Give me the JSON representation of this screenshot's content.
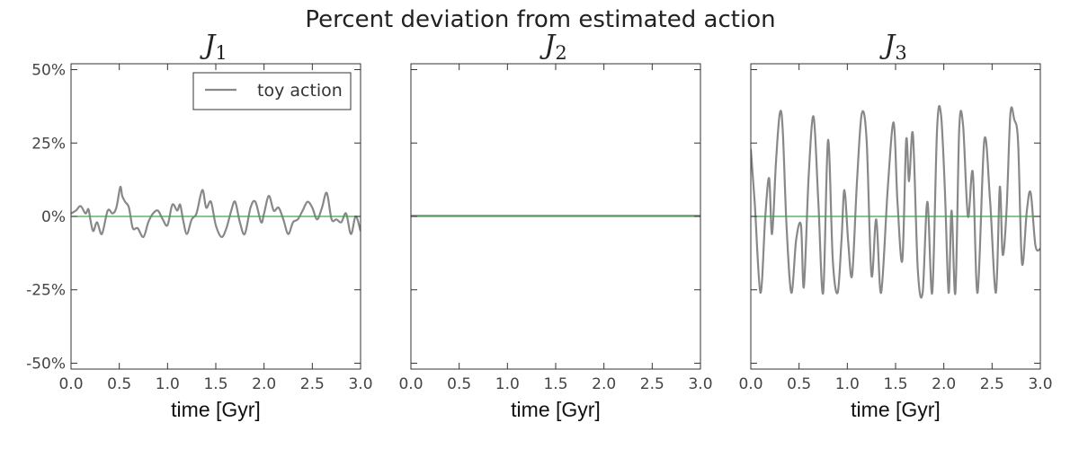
{
  "title": "Percent deviation from estimated action",
  "chart_data": [
    {
      "type": "line",
      "title": "J",
      "title_subscript": "1",
      "xlabel": "time [Gyr]",
      "ylabel": "",
      "xlim": [
        0,
        3.0
      ],
      "ylim": [
        -52,
        52
      ],
      "xticks": [
        "0.0",
        "0.5",
        "1.0",
        "1.5",
        "2.0",
        "2.5",
        "3.0"
      ],
      "yticks": [
        "50%",
        "25%",
        "0%",
        "-25%",
        "-50%"
      ],
      "yticks_values": [
        50,
        25,
        0,
        -25,
        -50
      ],
      "show_yticklabels": true,
      "grid": false,
      "legend": {
        "position": "top-right",
        "entries": [
          "toy action"
        ]
      },
      "series": [
        {
          "name": "toy action",
          "color": "#888888",
          "x": [
            0.0,
            0.05,
            0.1,
            0.15,
            0.18,
            0.2,
            0.23,
            0.27,
            0.32,
            0.38,
            0.43,
            0.47,
            0.51,
            0.53,
            0.56,
            0.6,
            0.64,
            0.69,
            0.75,
            0.8,
            0.85,
            0.9,
            0.95,
            1.0,
            1.05,
            1.1,
            1.13,
            1.16,
            1.2,
            1.25,
            1.3,
            1.36,
            1.4,
            1.45,
            1.5,
            1.56,
            1.61,
            1.66,
            1.7,
            1.75,
            1.8,
            1.86,
            1.91,
            1.97,
            2.0,
            2.05,
            2.1,
            2.15,
            2.2,
            2.25,
            2.3,
            2.35,
            2.4,
            2.45,
            2.5,
            2.55,
            2.6,
            2.65,
            2.7,
            2.75,
            2.8,
            2.85,
            2.9,
            2.95,
            3.0
          ],
          "values": [
            1,
            2,
            3.5,
            1,
            2.5,
            -1,
            -5,
            -2,
            -6,
            2,
            1,
            3,
            10,
            7,
            5,
            3,
            -4,
            -4,
            -7,
            -2,
            1,
            2,
            -1,
            -3,
            4,
            2,
            4,
            -1,
            -6,
            -1,
            1,
            9,
            3,
            5,
            -3,
            -7,
            -4,
            2,
            5,
            -2,
            -6,
            3,
            5,
            -2,
            1,
            7,
            2,
            3,
            -1,
            -6,
            -2,
            -1,
            2,
            5,
            3,
            -1,
            3,
            8,
            -1,
            -1,
            -2,
            1,
            -6,
            0,
            -5
          ]
        },
        {
          "name": "",
          "color": "#3aa64a",
          "x": [
            0.0,
            3.0
          ],
          "values": [
            0,
            0
          ]
        }
      ]
    },
    {
      "type": "line",
      "title": "J",
      "title_subscript": "2",
      "xlabel": "time [Gyr]",
      "ylabel": "",
      "xlim": [
        0,
        3.0
      ],
      "ylim": [
        -52,
        52
      ],
      "xticks": [
        "0.0",
        "0.5",
        "1.0",
        "1.5",
        "2.0",
        "2.5",
        "3.0"
      ],
      "yticks_values": [
        50,
        25,
        0,
        -25,
        -50
      ],
      "show_yticklabels": false,
      "grid": false,
      "series": [
        {
          "name": "toy action",
          "color": "#888888",
          "x": [
            0.0,
            3.0
          ],
          "values": [
            0.2,
            0.2
          ]
        },
        {
          "name": "",
          "color": "#3aa64a",
          "x": [
            0.0,
            3.0
          ],
          "values": [
            0,
            0
          ]
        }
      ]
    },
    {
      "type": "line",
      "title": "J",
      "title_subscript": "3",
      "xlabel": "time [Gyr]",
      "ylabel": "",
      "xlim": [
        0,
        3.0
      ],
      "ylim": [
        -52,
        52
      ],
      "xticks": [
        "0.0",
        "0.5",
        "1.0",
        "1.5",
        "2.0",
        "2.5",
        "3.0"
      ],
      "yticks_values": [
        50,
        25,
        0,
        -25,
        -50
      ],
      "show_yticklabels": false,
      "grid": false,
      "series": [
        {
          "name": "toy action",
          "color": "#888888",
          "x": [
            0.0,
            0.04,
            0.1,
            0.15,
            0.19,
            0.22,
            0.26,
            0.3,
            0.33,
            0.37,
            0.42,
            0.47,
            0.52,
            0.55,
            0.6,
            0.65,
            0.7,
            0.75,
            0.8,
            0.85,
            0.9,
            0.94,
            0.97,
            1.01,
            1.05,
            1.1,
            1.15,
            1.2,
            1.25,
            1.3,
            1.35,
            1.42,
            1.48,
            1.52,
            1.57,
            1.61,
            1.64,
            1.68,
            1.73,
            1.78,
            1.83,
            1.88,
            1.93,
            1.97,
            2.01,
            2.05,
            2.08,
            2.12,
            2.16,
            2.2,
            2.25,
            2.3,
            2.35,
            2.42,
            2.48,
            2.54,
            2.58,
            2.61,
            2.65,
            2.69,
            2.73,
            2.77,
            2.81,
            2.86,
            2.9,
            2.95,
            3.0
          ],
          "values": [
            23,
            5,
            -26,
            0,
            13,
            -6,
            18,
            35,
            30,
            -3,
            -26,
            -8,
            -3,
            -24,
            14,
            34,
            5,
            -26,
            26,
            -15,
            -26,
            -8,
            9,
            -9,
            -20,
            12,
            35,
            26,
            -20,
            -1,
            -26,
            10,
            32,
            5,
            -15,
            26,
            12,
            28,
            -18,
            -26,
            5,
            -26,
            30,
            35,
            10,
            -26,
            2,
            -26,
            30,
            31,
            0,
            15,
            -26,
            26,
            5,
            -26,
            10,
            -13,
            2,
            35,
            33,
            25,
            -16,
            2,
            8,
            -10,
            -11
          ]
        },
        {
          "name": "",
          "color": "#3aa64a",
          "x": [
            0.0,
            3.0
          ],
          "values": [
            0,
            0
          ]
        }
      ]
    }
  ]
}
